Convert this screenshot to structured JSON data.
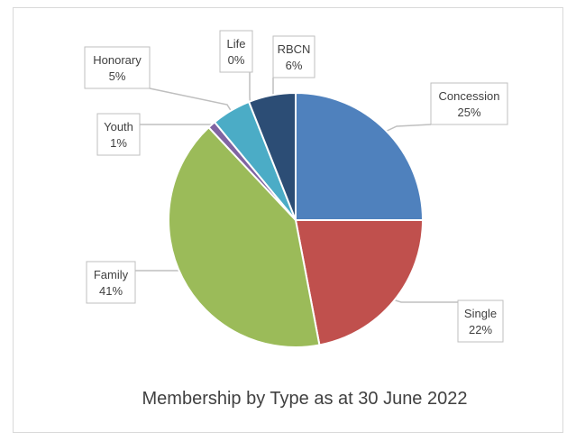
{
  "chart_data": {
    "type": "pie",
    "title": "Membership by Type as at 30 June 2022",
    "slices": [
      {
        "label": "Concession",
        "value_label": "25%",
        "value": 25,
        "color": "#4f81bd"
      },
      {
        "label": "Single",
        "value_label": "22%",
        "value": 22,
        "color": "#c0504d"
      },
      {
        "label": "Family",
        "value_label": "41%",
        "value": 41,
        "color": "#9bbb59"
      },
      {
        "label": "Youth",
        "value_label": "1%",
        "value": 1,
        "color": "#8064a2"
      },
      {
        "label": "Honorary",
        "value_label": "5%",
        "value": 5,
        "color": "#4bacc6"
      },
      {
        "label": "Life",
        "value_label": "0%",
        "value": 0,
        "color": "#f79646"
      },
      {
        "label": "RBCN",
        "value_label": "6%",
        "value": 6,
        "color": "#2c4d75"
      }
    ]
  }
}
